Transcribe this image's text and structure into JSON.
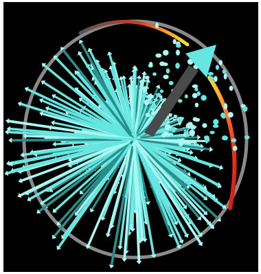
{
  "scene": {
    "background_color": "#000000",
    "arrow_color": "#66e6e0",
    "arrow_highlight": "#aaf7f3",
    "arrow_shadow": "#2a8f8b",
    "ring_color": "#8a8a8a",
    "gradient_colors": [
      "#ffe033",
      "#ff9a2e",
      "#ff3a20",
      "#c01818"
    ],
    "hub_color": "#4a4a4a",
    "icon": "vector-field-sphere"
  }
}
